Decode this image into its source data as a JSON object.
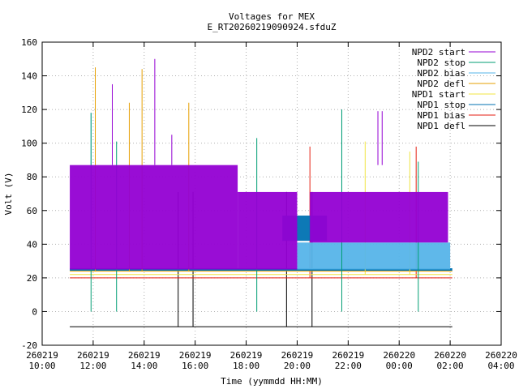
{
  "chart_data": {
    "type": "line",
    "title": "Voltages for MEX",
    "subtitle": "E_RT20260219090924.sfduZ",
    "xlabel": "Time (yymmdd HH:MM)",
    "ylabel": "Volt (V)",
    "xlim": [
      "2026-02-19 10:00",
      "2026-02-20 04:00"
    ],
    "ylim": [
      -20,
      160
    ],
    "grid": true,
    "legend_position": "top-right",
    "x_ticks": [
      {
        "date": "260219",
        "time": "10:00",
        "hours": 0
      },
      {
        "date": "260219",
        "time": "12:00",
        "hours": 2
      },
      {
        "date": "260219",
        "time": "14:00",
        "hours": 4
      },
      {
        "date": "260219",
        "time": "16:00",
        "hours": 6
      },
      {
        "date": "260219",
        "time": "18:00",
        "hours": 8
      },
      {
        "date": "260219",
        "time": "20:00",
        "hours": 10
      },
      {
        "date": "260219",
        "time": "22:00",
        "hours": 12
      },
      {
        "date": "260220",
        "time": "00:00",
        "hours": 14
      },
      {
        "date": "260220",
        "time": "02:00",
        "hours": 16
      },
      {
        "date": "260220",
        "time": "04:00",
        "hours": 18
      }
    ],
    "y_ticks": [
      "-20",
      "0",
      "20",
      "40",
      "60",
      "80",
      "100",
      "120",
      "140",
      "160"
    ],
    "series": [
      {
        "name": "NPD2 start",
        "color": "#9400d3",
        "bands": [
          {
            "x0": "2026-02-19 11:05",
            "x1": "2026-02-19 17:40",
            "low": 25,
            "high": 87
          },
          {
            "x0": "2026-02-19 17:40",
            "x1": "2026-02-19 20:00",
            "low": 25,
            "high": 71
          },
          {
            "x0": "2026-02-19 20:30",
            "x1": "2026-02-20 01:55",
            "low": 41,
            "high": 71
          }
        ],
        "spikes": [
          {
            "x": "2026-02-19 12:45",
            "y": 135
          },
          {
            "x": "2026-02-19 14:25",
            "y": 150
          },
          {
            "x": "2026-02-19 15:05",
            "y": 105
          },
          {
            "x": "2026-02-19 23:10",
            "y": 119
          },
          {
            "x": "2026-02-19 23:20",
            "y": 119
          }
        ]
      },
      {
        "name": "NPD2 stop",
        "color": "#009e73",
        "spikes": [
          {
            "x": "2026-02-19 11:55",
            "y": 118
          },
          {
            "x": "2026-02-19 12:55",
            "y": 101
          },
          {
            "x": "2026-02-19 18:25",
            "y": 103
          },
          {
            "x": "2026-02-19 21:45",
            "y": 120
          },
          {
            "x": "2026-02-20 00:45",
            "y": 89
          }
        ]
      },
      {
        "name": "NPD2 bias",
        "color": "#56b4e9",
        "bands": [
          {
            "x0": "2026-02-19 20:00",
            "x1": "2026-02-20 02:00",
            "low": 25,
            "high": 41
          }
        ],
        "spikes": [
          {
            "x": "2026-02-19 11:55",
            "y": 118
          },
          {
            "x": "2026-02-19 21:45",
            "y": 120
          }
        ]
      },
      {
        "name": "NPD2 defl",
        "color": "#e69f00",
        "level": 24,
        "spikes": [
          {
            "x": "2026-02-19 12:05",
            "y": 145
          },
          {
            "x": "2026-02-19 13:25",
            "y": 124
          },
          {
            "x": "2026-02-19 13:55",
            "y": 144
          },
          {
            "x": "2026-02-19 15:45",
            "y": 124
          }
        ]
      },
      {
        "name": "NPD1 start",
        "color": "#f0e442",
        "level": 22,
        "spikes": [
          {
            "x": "2026-02-19 22:40",
            "y": 101
          },
          {
            "x": "2026-02-20 00:25",
            "y": 95
          }
        ]
      },
      {
        "name": "NPD1 stop",
        "color": "#0072b2",
        "level": 25,
        "bands": [
          {
            "x0": "2026-02-19 19:25",
            "x1": "2026-02-19 21:10",
            "low": 42,
            "high": 57
          }
        ]
      },
      {
        "name": "NPD1 bias",
        "color": "#e51e10",
        "level": 20,
        "spikes": [
          {
            "x": "2026-02-19 20:30",
            "y": 98
          },
          {
            "x": "2026-02-20 00:40",
            "y": 98
          }
        ]
      },
      {
        "name": "NPD1 defl",
        "color": "#000000",
        "level": -9,
        "steps": [
          {
            "x": "2026-02-19 15:20",
            "y": 71
          },
          {
            "x": "2026-02-19 15:55",
            "y": 71
          },
          {
            "x": "2026-02-19 19:35",
            "y": 71
          },
          {
            "x": "2026-02-19 20:35",
            "y": 71
          }
        ]
      }
    ]
  }
}
